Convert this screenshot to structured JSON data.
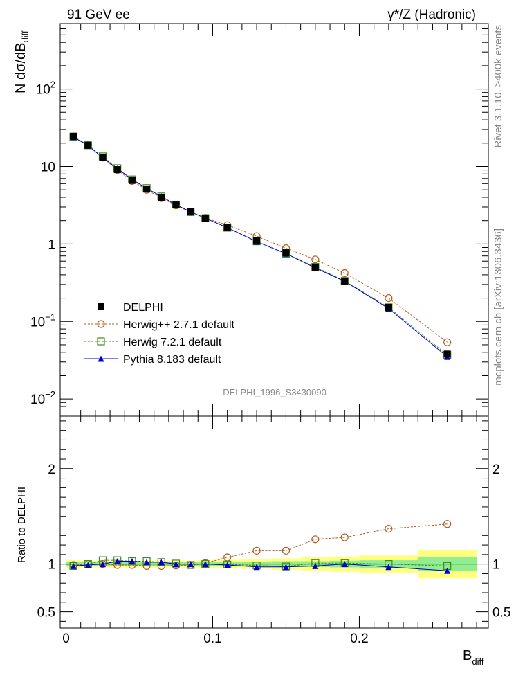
{
  "header": {
    "left": "91 GeV ee",
    "right": "γ*/Z (Hadronic)"
  },
  "side_labels": {
    "top": "Rivet 3.1.10, ≥400k events",
    "bottom": "mcplots.cern.ch [arXiv:1306.3436]"
  },
  "watermark": "DELPHI_1996_S3430090",
  "colors": {
    "data": "#000000",
    "herwigpp": "#b35a1f",
    "herwig7": "#3d8b1c",
    "pythia": "#0000cc",
    "band_inner": "#90ee90",
    "band_outer": "#ffff80"
  },
  "chart_data": [
    {
      "type": "scatter",
      "panel": "main",
      "ylabel": "N dσ/dB",
      "ylabel_sub": "diff",
      "yscale": "log",
      "xlim": [
        -0.004,
        0.288
      ],
      "ylim": [
        0.006,
        700
      ],
      "y_ticks": [
        {
          "value": 0.01,
          "base": "10",
          "exp": "−2"
        },
        {
          "value": 0.1,
          "base": "10",
          "exp": "−1"
        },
        {
          "value": 1,
          "base": "1",
          "exp": ""
        },
        {
          "value": 10,
          "base": "10",
          "exp": ""
        },
        {
          "value": 100,
          "base": "10",
          "exp": "2"
        }
      ],
      "legend_position": "center-left",
      "x": [
        0.005,
        0.015,
        0.025,
        0.035,
        0.045,
        0.055,
        0.065,
        0.075,
        0.085,
        0.095,
        0.11,
        0.13,
        0.15,
        0.17,
        0.19,
        0.22,
        0.26
      ],
      "series": [
        {
          "name": "DELPHI",
          "key": "data",
          "values": [
            24.6,
            18.8,
            13.0,
            9.1,
            6.6,
            5.1,
            4.0,
            3.2,
            2.6,
            2.15,
            1.63,
            1.1,
            0.77,
            0.5,
            0.33,
            0.152,
            0.038
          ]
        },
        {
          "name": "Herwig++ 2.7.1 default",
          "key": "herwigpp",
          "values": [
            24.3,
            18.9,
            13.0,
            9.0,
            6.5,
            5.0,
            3.92,
            3.15,
            2.57,
            2.17,
            1.75,
            1.26,
            0.88,
            0.63,
            0.42,
            0.2,
            0.054
          ]
        },
        {
          "name": "Herwig 7.2.1 default",
          "key": "herwig7",
          "values": [
            24.1,
            18.8,
            13.5,
            9.5,
            6.8,
            5.25,
            4.1,
            3.22,
            2.58,
            2.15,
            1.62,
            1.08,
            0.75,
            0.505,
            0.333,
            0.152,
            0.037
          ]
        },
        {
          "name": "Pythia 8.183 default",
          "key": "pythia",
          "values": [
            24.1,
            18.6,
            13.0,
            9.4,
            6.8,
            5.2,
            4.1,
            3.2,
            2.6,
            2.15,
            1.62,
            1.07,
            0.75,
            0.49,
            0.33,
            0.147,
            0.035
          ]
        }
      ]
    },
    {
      "type": "line",
      "panel": "ratio",
      "xlabel": "B",
      "xlabel_sub": "diff",
      "ylabel": "Ratio to DELPHI",
      "xlim": [
        -0.004,
        0.288
      ],
      "ylim": [
        0.33,
        2.55
      ],
      "x_ticks": [
        0,
        0.1,
        0.2
      ],
      "y_ticks": [
        0.5,
        1,
        2
      ],
      "bins": [
        [
          0,
          0.01
        ],
        [
          0.01,
          0.02
        ],
        [
          0.02,
          0.03
        ],
        [
          0.03,
          0.04
        ],
        [
          0.04,
          0.05
        ],
        [
          0.05,
          0.06
        ],
        [
          0.06,
          0.07
        ],
        [
          0.07,
          0.08
        ],
        [
          0.08,
          0.09
        ],
        [
          0.09,
          0.1
        ],
        [
          0.1,
          0.12
        ],
        [
          0.12,
          0.14
        ],
        [
          0.14,
          0.16
        ],
        [
          0.16,
          0.18
        ],
        [
          0.18,
          0.2
        ],
        [
          0.2,
          0.24
        ],
        [
          0.24,
          0.28
        ]
      ],
      "band_inner": [
        0.025,
        0.02,
        0.02,
        0.02,
        0.02,
        0.02,
        0.02,
        0.02,
        0.02,
        0.02,
        0.025,
        0.025,
        0.03,
        0.03,
        0.035,
        0.04,
        0.07
      ],
      "band_outer": [
        0.04,
        0.035,
        0.035,
        0.035,
        0.035,
        0.035,
        0.035,
        0.035,
        0.035,
        0.04,
        0.045,
        0.05,
        0.06,
        0.07,
        0.08,
        0.09,
        0.15
      ],
      "x": [
        0.005,
        0.015,
        0.025,
        0.035,
        0.045,
        0.055,
        0.065,
        0.075,
        0.085,
        0.095,
        0.11,
        0.13,
        0.15,
        0.17,
        0.19,
        0.22,
        0.26
      ],
      "series": [
        {
          "name": "Herwig++ 2.7.1 default",
          "key": "herwigpp",
          "values": [
            0.99,
            1.0,
            1.0,
            0.99,
            0.99,
            0.98,
            0.98,
            0.985,
            0.99,
            1.01,
            1.07,
            1.14,
            1.14,
            1.26,
            1.28,
            1.37,
            1.42
          ]
        },
        {
          "name": "Herwig 7.2.1 default",
          "key": "herwig7",
          "values": [
            0.98,
            1.0,
            1.04,
            1.04,
            1.03,
            1.03,
            1.02,
            1.005,
            0.99,
            1.0,
            0.995,
            0.985,
            0.975,
            1.01,
            1.01,
            1.0,
            0.98
          ]
        },
        {
          "name": "Pythia 8.183 default",
          "key": "pythia",
          "values": [
            0.98,
            0.99,
            1.0,
            1.03,
            1.03,
            1.02,
            1.02,
            1.0,
            1.0,
            1.0,
            0.99,
            0.97,
            0.97,
            0.98,
            1.0,
            0.97,
            0.93
          ]
        }
      ]
    }
  ]
}
